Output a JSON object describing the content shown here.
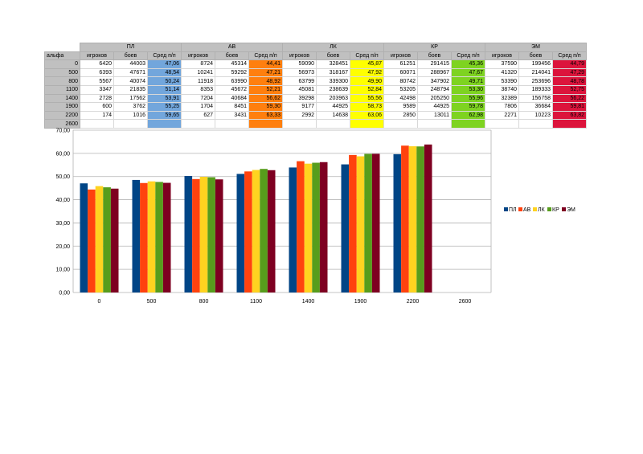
{
  "table": {
    "alpha_label": "альфа",
    "groups": [
      {
        "name": "ПЛ",
        "color": "#72a6dc"
      },
      {
        "name": "АВ",
        "color": "#ff7f0e"
      },
      {
        "name": "ЛК",
        "color": "#ffff00"
      },
      {
        "name": "КР",
        "color": "#7ed321"
      },
      {
        "name": "ЭМ",
        "color": "#dc143c"
      }
    ],
    "subheaders": [
      "игроков",
      "боев",
      "Сред п/п"
    ],
    "rows": [
      {
        "alpha": "0",
        "cells": [
          [
            "6420",
            "44003",
            "47,06"
          ],
          [
            "8724",
            "45314",
            "44,41"
          ],
          [
            "59090",
            "328451",
            "45,87"
          ],
          [
            "61251",
            "291415",
            "45,36"
          ],
          [
            "37590",
            "199456",
            "44,79"
          ]
        ]
      },
      {
        "alpha": "500",
        "cells": [
          [
            "6393",
            "47671",
            "48,54"
          ],
          [
            "10241",
            "59292",
            "47,21"
          ],
          [
            "56973",
            "318167",
            "47,92"
          ],
          [
            "60071",
            "288967",
            "47,67"
          ],
          [
            "41320",
            "214041",
            "47,29"
          ]
        ]
      },
      {
        "alpha": "800",
        "cells": [
          [
            "5567",
            "40074",
            "50,24"
          ],
          [
            "11918",
            "63990",
            "48,92"
          ],
          [
            "63799",
            "339300",
            "49,90"
          ],
          [
            "80742",
            "347902",
            "49,71"
          ],
          [
            "53390",
            "253696",
            "48,78"
          ]
        ]
      },
      {
        "alpha": "1100",
        "cells": [
          [
            "3347",
            "21835",
            "51,14"
          ],
          [
            "8353",
            "45672",
            "52,21"
          ],
          [
            "45081",
            "238639",
            "52,84"
          ],
          [
            "53205",
            "248794",
            "53,30"
          ],
          [
            "38740",
            "189333",
            "52,75"
          ]
        ]
      },
      {
        "alpha": "1400",
        "cells": [
          [
            "2728",
            "17562",
            "53,91"
          ],
          [
            "7204",
            "40684",
            "56,62"
          ],
          [
            "39298",
            "203963",
            "55,56"
          ],
          [
            "42498",
            "205250",
            "55,96"
          ],
          [
            "32389",
            "156758",
            "56,22"
          ]
        ]
      },
      {
        "alpha": "1900",
        "cells": [
          [
            "600",
            "3762",
            "55,25"
          ],
          [
            "1704",
            "8451",
            "59,30"
          ],
          [
            "9177",
            "44925",
            "58,73"
          ],
          [
            "9589",
            "44925",
            "59,78"
          ],
          [
            "7806",
            "36684",
            "59,81"
          ]
        ]
      },
      {
        "alpha": "2200",
        "cells": [
          [
            "174",
            "1016",
            "59,65"
          ],
          [
            "627",
            "3431",
            "63,33"
          ],
          [
            "2992",
            "14638",
            "63,06"
          ],
          [
            "2850",
            "13011",
            "62,98"
          ],
          [
            "2271",
            "10223",
            "63,82"
          ]
        ]
      },
      {
        "alpha": "2600",
        "cells": [
          [
            "",
            "",
            ""
          ],
          [
            "",
            "",
            ""
          ],
          [
            "",
            "",
            ""
          ],
          [
            "",
            "",
            ""
          ],
          [
            "",
            "",
            ""
          ]
        ]
      }
    ]
  },
  "chart_data": {
    "type": "bar",
    "categories": [
      "0",
      "500",
      "800",
      "1100",
      "1400",
      "1900",
      "2200",
      "2600"
    ],
    "ylim": [
      0,
      70
    ],
    "yticks": [
      "0,00",
      "10,00",
      "20,00",
      "30,00",
      "40,00",
      "50,00",
      "60,00",
      "70,00"
    ],
    "grid": true,
    "legend": "right",
    "series": [
      {
        "name": "ПЛ",
        "color": "#004586",
        "values": [
          47.06,
          48.54,
          50.24,
          51.14,
          53.91,
          55.25,
          59.65,
          null
        ]
      },
      {
        "name": "АВ",
        "color": "#ff420e",
        "values": [
          44.41,
          47.21,
          48.92,
          52.21,
          56.62,
          59.3,
          63.33,
          null
        ]
      },
      {
        "name": "ЛК",
        "color": "#ffd320",
        "values": [
          45.87,
          47.92,
          49.9,
          52.84,
          55.56,
          58.73,
          63.06,
          null
        ]
      },
      {
        "name": "КР",
        "color": "#579d1c",
        "values": [
          45.36,
          47.67,
          49.71,
          53.3,
          55.96,
          59.78,
          62.98,
          null
        ]
      },
      {
        "name": "ЭМ",
        "color": "#7e0021",
        "values": [
          44.79,
          47.29,
          48.78,
          52.75,
          56.22,
          59.81,
          63.82,
          null
        ]
      }
    ]
  }
}
